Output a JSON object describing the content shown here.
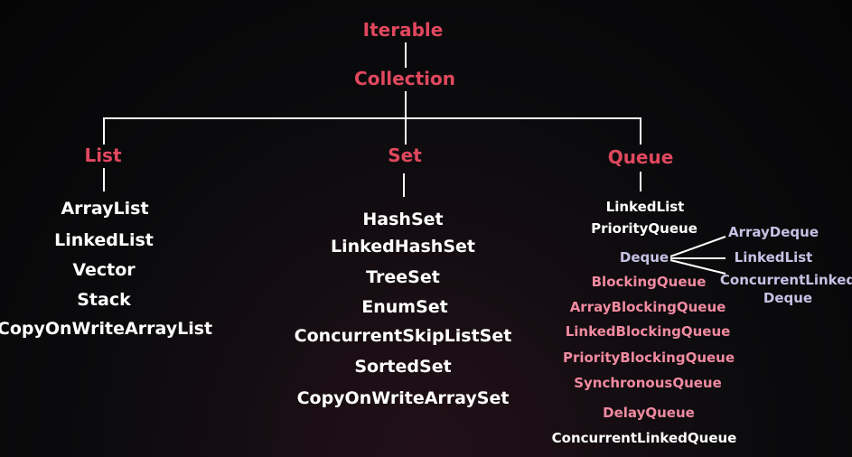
{
  "root": "Iterable",
  "collection": "Collection",
  "list": {
    "title": "List",
    "items": [
      "ArrayList",
      "LinkedList",
      "Vector",
      "Stack",
      "CopyOnWriteArrayList"
    ]
  },
  "set": {
    "title": "Set",
    "items": [
      "HashSet",
      "LinkedHashSet",
      "TreeSet",
      "EnumSet",
      "ConcurrentSkipListSet",
      "SortedSet",
      "CopyOnWriteArraySet"
    ]
  },
  "queue": {
    "title": "Queue",
    "linked_list": "LinkedList",
    "priority_queue": "PriorityQueue",
    "deque": {
      "label": "Deque",
      "children": [
        "ArrayDeque",
        "LinkedList",
        "ConcurrentLinked",
        "Deque"
      ]
    },
    "blocking_queue": "BlockingQueue",
    "blocking_items": [
      "ArrayBlockingQueue",
      "LinkedBlockingQueue",
      "PriorityBlockingQueue",
      "SynchronousQueue",
      "DelayQueue"
    ],
    "concurrent_linked_queue": "ConcurrentLinkedQueue"
  },
  "colors": {
    "heading": "#e0485e",
    "item": "#ffffff",
    "deque": "#c6c1e4",
    "blocking": "#f08aa0"
  }
}
